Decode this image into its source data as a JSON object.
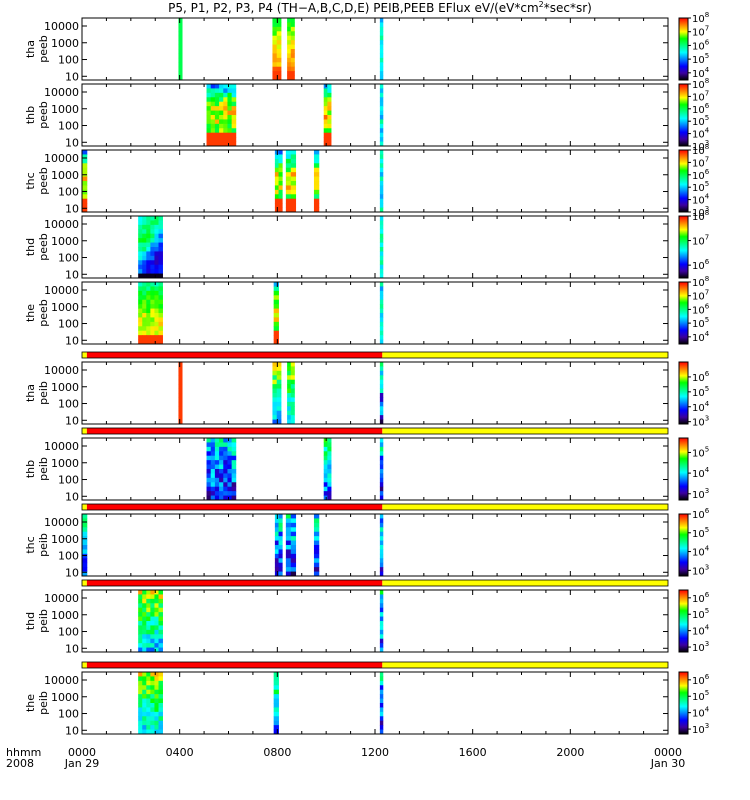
{
  "chart_data": {
    "type": "heatmap",
    "title": "P5, P1, P2, P3, P4 (TH-A,B,C,D,E) PEIB,PEEB EFlux eV/(eV*cm^2*sec*sr)",
    "title_parts": [
      "P5, P1, P2, P3, P4 (TH−A,B,C,D,E) PEIB,PEEB EFlux eV/(eV*cm",
      "2",
      "*sec*sr)"
    ],
    "x_axis": {
      "row_label_1": "hhmm",
      "row_label_2": "2008",
      "range_hours": [
        0,
        24
      ],
      "ticks": [
        {
          "hour": 0,
          "label": "0000",
          "sub": "Jan 29"
        },
        {
          "hour": 4,
          "label": "0400",
          "sub": ""
        },
        {
          "hour": 8,
          "label": "0800",
          "sub": ""
        },
        {
          "hour": 12,
          "label": "1200",
          "sub": ""
        },
        {
          "hour": 16,
          "label": "1600",
          "sub": ""
        },
        {
          "hour": 20,
          "label": "2000",
          "sub": ""
        },
        {
          "hour": 24,
          "label": "0000",
          "sub": "Jan 30"
        }
      ]
    },
    "y_axis": {
      "scale": "log",
      "energy_range_eV": [
        6,
        30000
      ]
    },
    "panels": [
      {
        "label1": "tha",
        "label2": "peeb",
        "yticks": [
          "10000",
          "1000",
          "100",
          "10"
        ],
        "yrange": [
          6,
          30000
        ],
        "cbar": {
          "range": [
            3000,
            100000000
          ],
          "labels": [
            {
              "v": 100000000,
              "t": "10",
              "e": "8"
            },
            {
              "v": 10000000,
              "t": "10",
              "e": "7"
            },
            {
              "v": 1000000,
              "t": "10",
              "e": "6"
            },
            {
              "v": 100000,
              "t": "10",
              "e": "5"
            },
            {
              "v": 10000,
              "t": "10",
              "e": "4"
            }
          ]
        },
        "bursts": [
          {
            "start": 3.95,
            "end": 4.1,
            "style": "flat",
            "level": 0.6
          },
          {
            "start": 7.8,
            "end": 8.15,
            "style": "hot",
            "level": 0.88
          },
          {
            "start": 8.4,
            "end": 8.7,
            "style": "hot",
            "level": 0.88
          },
          {
            "start": 12.2,
            "end": 12.32,
            "style": "cyan",
            "level": 0.45
          }
        ]
      },
      {
        "label1": "thb",
        "label2": "peeb",
        "yticks": [
          "10000",
          "1000",
          "100",
          "10"
        ],
        "yrange": [
          6,
          30000
        ],
        "cbar": {
          "range": [
            1000,
            100000000
          ],
          "labels": [
            {
              "v": 100000000,
              "t": "10",
              "e": "8"
            },
            {
              "v": 10000000,
              "t": "10",
              "e": "7"
            },
            {
              "v": 1000000,
              "t": "10",
              "e": "6"
            },
            {
              "v": 100000,
              "t": "10",
              "e": "5"
            },
            {
              "v": 10000,
              "t": "10",
              "e": "4"
            },
            {
              "v": 1000,
              "t": "10",
              "e": "3"
            }
          ]
        },
        "bursts": [
          {
            "start": 5.1,
            "end": 6.3,
            "style": "spec",
            "level": 0.55
          },
          {
            "start": 9.9,
            "end": 10.2,
            "style": "spec",
            "level": 0.6
          },
          {
            "start": 12.2,
            "end": 12.32,
            "style": "cyan",
            "level": 0.45
          }
        ]
      },
      {
        "label1": "thc",
        "label2": "peeb",
        "yticks": [
          "10000",
          "1000",
          "100",
          "10"
        ],
        "yrange": [
          6,
          30000
        ],
        "cbar": {
          "range": [
            1000,
            100000000
          ],
          "labels": [
            {
              "v": 100000000,
              "t": "10",
              "e": "8"
            },
            {
              "v": 10000000,
              "t": "10",
              "e": "7"
            },
            {
              "v": 1000000,
              "t": "10",
              "e": "6"
            },
            {
              "v": 100000,
              "t": "10",
              "e": "5"
            },
            {
              "v": 10000,
              "t": "10",
              "e": "4"
            },
            {
              "v": 1000,
              "t": "10",
              "e": "3"
            }
          ]
        },
        "bursts": [
          {
            "start": 0.0,
            "end": 0.2,
            "style": "spec",
            "level": 0.65
          },
          {
            "start": 7.9,
            "end": 8.2,
            "style": "spec",
            "level": 0.6
          },
          {
            "start": 8.35,
            "end": 8.75,
            "style": "spec",
            "level": 0.6
          },
          {
            "start": 9.5,
            "end": 9.7,
            "style": "spec",
            "level": 0.6
          },
          {
            "start": 12.2,
            "end": 12.32,
            "style": "cyan",
            "level": 0.45
          }
        ]
      },
      {
        "label1": "thd",
        "label2": "peeb",
        "yticks": [
          "10000",
          "1000",
          "100",
          "10"
        ],
        "yrange": [
          6,
          30000
        ],
        "cbar": {
          "range": [
            300000,
            100000000
          ],
          "labels": [
            {
              "v": 100000000,
              "t": "10",
              "e": "8"
            },
            {
              "v": 10000000,
              "t": "10",
              "e": "7"
            },
            {
              "v": 1000000,
              "t": "10",
              "e": "6"
            }
          ]
        },
        "bursts": [
          {
            "start": 2.3,
            "end": 3.3,
            "style": "cool",
            "level": 0.4
          },
          {
            "start": 12.2,
            "end": 12.32,
            "style": "cyan",
            "level": 0.5
          }
        ]
      },
      {
        "label1": "the",
        "label2": "peeb",
        "yticks": [
          "10000",
          "1000",
          "100",
          "10"
        ],
        "yrange": [
          6,
          30000
        ],
        "cbar": {
          "range": [
            3000,
            100000000
          ],
          "labels": [
            {
              "v": 100000000,
              "t": "10",
              "e": "8"
            },
            {
              "v": 10000000,
              "t": "10",
              "e": "7"
            },
            {
              "v": 1000000,
              "t": "10",
              "e": "6"
            },
            {
              "v": 100000,
              "t": "10",
              "e": "5"
            },
            {
              "v": 10000,
              "t": "10",
              "e": "4"
            }
          ]
        },
        "bursts": [
          {
            "start": 2.3,
            "end": 3.3,
            "style": "hot",
            "level": 0.8
          },
          {
            "start": 7.85,
            "end": 8.05,
            "style": "spec",
            "level": 0.6
          },
          {
            "start": 12.2,
            "end": 12.32,
            "style": "cyan",
            "level": 0.45
          }
        ]
      },
      {
        "label1": "tha",
        "label2": "peib",
        "yticks": [
          "10000",
          "1000",
          "100",
          "10"
        ],
        "yrange": [
          6,
          30000
        ],
        "cbar": {
          "range": [
            700,
            10000000
          ],
          "labels": [
            {
              "v": 1000000,
              "t": "10",
              "e": "6"
            },
            {
              "v": 100000,
              "t": "10",
              "e": "5"
            },
            {
              "v": 10000,
              "t": "10",
              "e": "4"
            },
            {
              "v": 1000,
              "t": "10",
              "e": "3"
            }
          ]
        },
        "bursts": [
          {
            "start": 3.95,
            "end": 4.1,
            "style": "flatred",
            "level": 0.95
          },
          {
            "start": 7.8,
            "end": 8.15,
            "style": "ion",
            "level": 0.75
          },
          {
            "start": 8.4,
            "end": 8.7,
            "style": "ion",
            "level": 0.75
          },
          {
            "start": 12.2,
            "end": 12.32,
            "style": "ionlow",
            "level": 0.45
          }
        ]
      },
      {
        "label1": "thb",
        "label2": "peib",
        "yticks": [
          "10000",
          "1000",
          "100",
          "10"
        ],
        "yrange": [
          6,
          30000
        ],
        "cbar": {
          "range": [
            500,
            500000
          ],
          "labels": [
            {
              "v": 100000,
              "t": "10",
              "e": "5"
            },
            {
              "v": 10000,
              "t": "10",
              "e": "4"
            },
            {
              "v": 1000,
              "t": "10",
              "e": "3"
            }
          ]
        },
        "bursts": [
          {
            "start": 5.1,
            "end": 6.3,
            "style": "ionlow",
            "level": 0.45
          },
          {
            "start": 9.9,
            "end": 10.2,
            "style": "ion",
            "level": 0.6
          },
          {
            "start": 12.2,
            "end": 12.32,
            "style": "ionlow",
            "level": 0.45
          }
        ]
      },
      {
        "label1": "thc",
        "label2": "peib",
        "yticks": [
          "10000",
          "1000",
          "100",
          "10"
        ],
        "yrange": [
          6,
          30000
        ],
        "cbar": {
          "range": [
            500,
            1000000
          ],
          "labels": [
            {
              "v": 1000000,
              "t": "10",
              "e": "6"
            },
            {
              "v": 100000,
              "t": "10",
              "e": "5"
            },
            {
              "v": 10000,
              "t": "10",
              "e": "4"
            },
            {
              "v": 1000,
              "t": "10",
              "e": "3"
            }
          ]
        },
        "bursts": [
          {
            "start": 0.0,
            "end": 0.2,
            "style": "ion",
            "level": 0.6
          },
          {
            "start": 7.9,
            "end": 8.2,
            "style": "ionlow",
            "level": 0.45
          },
          {
            "start": 8.35,
            "end": 8.75,
            "style": "ionlow",
            "level": 0.45
          },
          {
            "start": 9.5,
            "end": 9.7,
            "style": "ionlow",
            "level": 0.45
          },
          {
            "start": 12.2,
            "end": 12.32,
            "style": "ionlow",
            "level": 0.45
          }
        ]
      },
      {
        "label1": "thd",
        "label2": "peib",
        "yticks": [
          "10000",
          "1000",
          "100",
          "10"
        ],
        "yrange": [
          6,
          30000
        ],
        "cbar": {
          "range": [
            500,
            3000000
          ],
          "labels": [
            {
              "v": 1000000,
              "t": "10",
              "e": "6"
            },
            {
              "v": 100000,
              "t": "10",
              "e": "5"
            },
            {
              "v": 10000,
              "t": "10",
              "e": "4"
            },
            {
              "v": 1000,
              "t": "10",
              "e": "3"
            }
          ]
        },
        "bursts": [
          {
            "start": 2.3,
            "end": 3.3,
            "style": "ion",
            "level": 0.75
          },
          {
            "start": 12.2,
            "end": 12.32,
            "style": "ionlow",
            "level": 0.5
          }
        ]
      },
      {
        "label1": "the",
        "label2": "peib",
        "yticks": [
          "10000",
          "1000",
          "100",
          "10"
        ],
        "yrange": [
          6,
          30000
        ],
        "cbar": {
          "range": [
            500,
            3000000
          ],
          "labels": [
            {
              "v": 1000000,
              "t": "10",
              "e": "6"
            },
            {
              "v": 100000,
              "t": "10",
              "e": "5"
            },
            {
              "v": 10000,
              "t": "10",
              "e": "4"
            },
            {
              "v": 1000,
              "t": "10",
              "e": "3"
            }
          ]
        },
        "bursts": [
          {
            "start": 2.3,
            "end": 3.3,
            "style": "ion",
            "level": 0.75
          },
          {
            "start": 7.85,
            "end": 8.05,
            "style": "ion",
            "level": 0.65
          },
          {
            "start": 12.2,
            "end": 12.32,
            "style": "ionlow",
            "level": 0.45
          }
        ]
      }
    ],
    "status_bars": [
      {
        "segments": [
          {
            "start": 0,
            "end": 0.2,
            "color": "#ffff00"
          },
          {
            "start": 0.2,
            "end": 12.3,
            "color": "#ff0000"
          },
          {
            "start": 12.3,
            "end": 24,
            "color": "#ffff00"
          }
        ]
      },
      {
        "segments": [
          {
            "start": 0,
            "end": 0.2,
            "color": "#ffff00"
          },
          {
            "start": 0.2,
            "end": 12.3,
            "color": "#ff0000"
          },
          {
            "start": 12.3,
            "end": 24,
            "color": "#ffff00"
          }
        ]
      },
      {
        "segments": [
          {
            "start": 0,
            "end": 0.2,
            "color": "#ffff00"
          },
          {
            "start": 0.2,
            "end": 12.3,
            "color": "#ff0000"
          },
          {
            "start": 12.3,
            "end": 24,
            "color": "#ffff00"
          }
        ]
      },
      {
        "segments": [
          {
            "start": 0,
            "end": 0.2,
            "color": "#ffff00"
          },
          {
            "start": 0.2,
            "end": 12.3,
            "color": "#ff0000"
          },
          {
            "start": 12.3,
            "end": 24,
            "color": "#ffff00"
          }
        ]
      },
      {
        "segments": [
          {
            "start": 0,
            "end": 0.2,
            "color": "#ffff00"
          },
          {
            "start": 0.2,
            "end": 12.3,
            "color": "#ff0000"
          },
          {
            "start": 12.3,
            "end": 24,
            "color": "#ffff00"
          }
        ]
      }
    ],
    "colormap": [
      "#000000",
      "#3c00a0",
      "#0000ff",
      "#0080ff",
      "#00ffff",
      "#00ff80",
      "#00ff00",
      "#ffff00",
      "#ff8000",
      "#ff0000"
    ]
  }
}
